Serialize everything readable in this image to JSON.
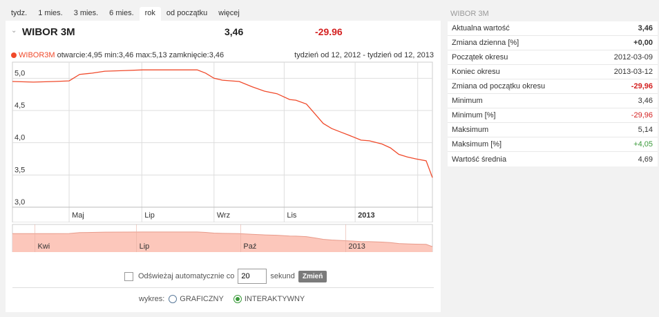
{
  "tabs": [
    {
      "label": "tydz.",
      "active": false
    },
    {
      "label": "1 mies.",
      "active": false
    },
    {
      "label": "3 mies.",
      "active": false
    },
    {
      "label": "6 mies.",
      "active": false
    },
    {
      "label": "rok",
      "active": true
    },
    {
      "label": "od początku",
      "active": false
    },
    {
      "label": "więcej",
      "active": false
    }
  ],
  "header": {
    "title": "WIBOR 3M",
    "value": "3,46",
    "change": "-29.96"
  },
  "info": {
    "series": "WIBOR3M",
    "stats": "otwarcie:4,95 min:3,46 max:5,13 zamknięcie:3,46",
    "range": "tydzień od 12, 2012 - tydzień od 12, 2013"
  },
  "colors": {
    "line": "#f0492a",
    "area": "#fcc7bb",
    "negative": "#d42020",
    "positive": "#3a9a3a"
  },
  "chart_data": {
    "type": "line",
    "ylim": [
      3.0,
      5.25
    ],
    "yticks": [
      "5,0",
      "4,5",
      "4,0",
      "3,5",
      "3,0"
    ],
    "ytick_values": [
      5.0,
      4.5,
      4.0,
      3.5,
      3.0
    ],
    "xticks": [
      {
        "label": "Maj",
        "x": 0.135,
        "bold": false
      },
      {
        "label": "Lip",
        "x": 0.308,
        "bold": false
      },
      {
        "label": "Wrz",
        "x": 0.48,
        "bold": false
      },
      {
        "label": "Lis",
        "x": 0.647,
        "bold": false
      },
      {
        "label": "2013",
        "x": 0.816,
        "bold": true
      }
    ],
    "x": [
      0,
      0.05,
      0.1,
      0.135,
      0.16,
      0.19,
      0.22,
      0.27,
      0.31,
      0.35,
      0.39,
      0.44,
      0.46,
      0.48,
      0.5,
      0.54,
      0.57,
      0.6,
      0.63,
      0.66,
      0.675,
      0.7,
      0.72,
      0.74,
      0.76,
      0.78,
      0.8,
      0.83,
      0.85,
      0.88,
      0.9,
      0.92,
      0.94,
      0.96,
      0.985,
      1.0
    ],
    "values": [
      4.95,
      4.94,
      4.95,
      4.96,
      5.06,
      5.08,
      5.11,
      5.12,
      5.13,
      5.13,
      5.13,
      5.13,
      5.08,
      5.0,
      4.97,
      4.95,
      4.87,
      4.8,
      4.76,
      4.67,
      4.66,
      4.6,
      4.45,
      4.3,
      4.22,
      4.17,
      4.12,
      4.04,
      4.03,
      3.98,
      3.92,
      3.82,
      3.78,
      3.75,
      3.72,
      3.46
    ],
    "nav_labels": [
      {
        "label": "Kwi",
        "x": 0.06
      },
      {
        "label": "Lip",
        "x": 0.302
      },
      {
        "label": "Paź",
        "x": 0.55
      },
      {
        "label": "2013",
        "x": 0.8
      }
    ]
  },
  "refresh": {
    "label": "Odświeżaj automatycznie co",
    "interval": "20",
    "unit": "sekund",
    "button": "Zmień"
  },
  "mode": {
    "label": "wykres:",
    "opt1": "GRAFICZNY",
    "opt2": "INTERAKTYWNY",
    "selected": "INTERAKTYWNY"
  },
  "side": {
    "title": "WIBOR 3M",
    "rows": [
      {
        "label": "Aktualna wartość",
        "value": "3,46",
        "style": "bold"
      },
      {
        "label": "Zmiana dzienna [%]",
        "value": "+0,00",
        "style": "bold"
      },
      {
        "label": "Początek okresu",
        "value": "2012-03-09",
        "style": ""
      },
      {
        "label": "Koniec okresu",
        "value": "2013-03-12",
        "style": ""
      },
      {
        "label": "Zmiana od początku okresu",
        "value": "-29,96",
        "style": "bold red"
      },
      {
        "label": "Minimum",
        "value": "3,46",
        "style": ""
      },
      {
        "label": "Minimum [%]",
        "value": "-29,96",
        "style": "red"
      },
      {
        "label": "Maksimum",
        "value": "5,14",
        "style": ""
      },
      {
        "label": "Maksimum [%]",
        "value": "+4,05",
        "style": "green"
      },
      {
        "label": "Wartość średnia",
        "value": "4,69",
        "style": ""
      }
    ]
  }
}
